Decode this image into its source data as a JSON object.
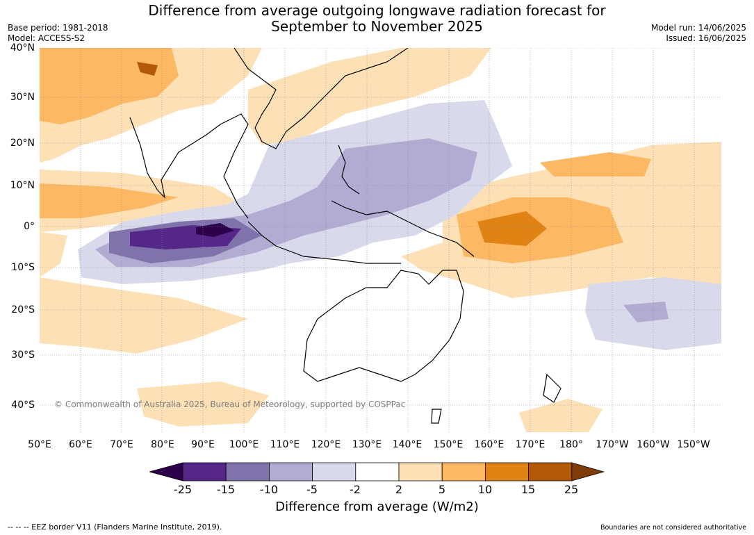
{
  "title_line1": "Difference from average outgoing longwave radiation forecast for",
  "title_line2": "September to November 2025",
  "meta_left": [
    "Base period: 1981-2018",
    "Model: ACCESS-S2"
  ],
  "meta_right": [
    "Model run: 14/06/2025",
    "Issued: 16/06/2025"
  ],
  "lat_labels": [
    "40°N",
    "30°N",
    "20°N",
    "10°N",
    "0°",
    "10°S",
    "20°S",
    "30°S",
    "40°S"
  ],
  "lon_labels": [
    "50°E",
    "60°E",
    "70°E",
    "80°E",
    "90°E",
    "100°E",
    "110°E",
    "120°E",
    "130°E",
    "140°E",
    "150°E",
    "160°E",
    "170°E",
    "180°",
    "170°W",
    "160°W",
    "150°W"
  ],
  "copyright": "© Commonwealth of Australia 2025, Bureau of Meteorology, supported by COSPPac",
  "colorbar": {
    "ticks": [
      "-25",
      "-15",
      "-10",
      "-5",
      "-2",
      "2",
      "5",
      "10",
      "15",
      "25"
    ],
    "colors": [
      "#2d004b",
      "#542788",
      "#8073ac",
      "#b2abd2",
      "#d8daeb",
      "#ffffff",
      "#fee0b6",
      "#fdb863",
      "#e08214",
      "#b35806",
      "#7f3b08"
    ],
    "title": "Difference from average (W/m2)"
  },
  "footer_left": "--  --  -- EEZ border V11 (Flanders Marine Institute, 2019).",
  "footer_right": "Boundaries are not considered authoritative"
}
